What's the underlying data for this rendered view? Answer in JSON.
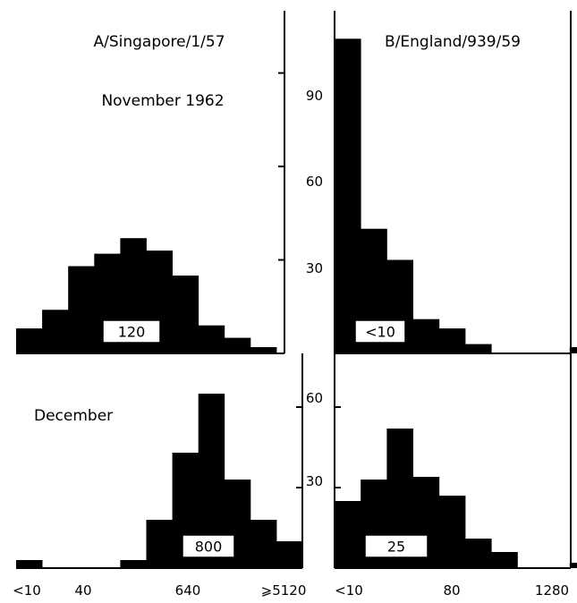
{
  "chart_data": [
    {
      "type": "bar",
      "title": "A/Singapore/1/57",
      "subtitle": "November 1962",
      "median_label": "120",
      "values": [
        8,
        14,
        28,
        32,
        37,
        33,
        25,
        9,
        5,
        2
      ],
      "ylim": [
        0,
        110
      ],
      "yticks": [
        30,
        60,
        90
      ]
    },
    {
      "type": "bar",
      "title": "B/England/939/59",
      "median_label": "<10",
      "values": [
        101,
        40,
        30,
        11,
        8,
        3,
        0,
        0,
        0,
        2
      ],
      "ylim": [
        0,
        110
      ],
      "yticks": [
        30,
        60,
        90
      ],
      "ytick_labels": [
        "30",
        "60",
        "90"
      ]
    },
    {
      "type": "bar",
      "subtitle": "December",
      "median_label": "800",
      "values": [
        3,
        0,
        0,
        0,
        3,
        18,
        43,
        65,
        33,
        18,
        10
      ],
      "ylim": [
        0,
        80
      ],
      "yticks": [
        30,
        60
      ],
      "xtick_labels": [
        "<10",
        "40",
        "640",
        "⩾5120"
      ]
    },
    {
      "type": "bar",
      "median_label": "25",
      "values": [
        25,
        33,
        52,
        34,
        27,
        11,
        6,
        0,
        0,
        2
      ],
      "ylim": [
        0,
        80
      ],
      "yticks": [
        30,
        60
      ],
      "ytick_labels": [
        "30",
        "60"
      ],
      "xtick_labels": [
        "<10",
        "80",
        "1280"
      ]
    }
  ]
}
